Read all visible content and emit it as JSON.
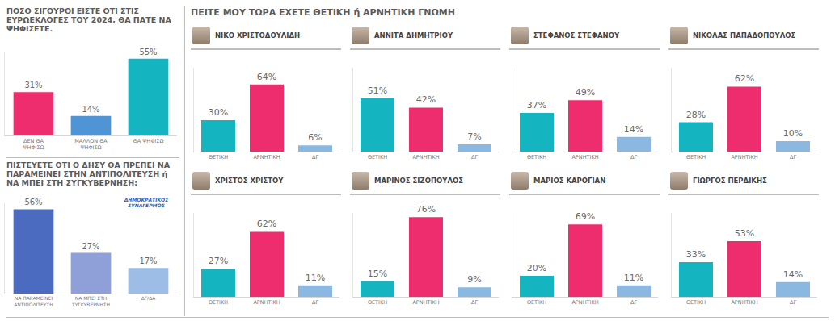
{
  "heading": "ΠΕΙΤΕ ΜΟΥ ΤΩΡΑ ΕΧΕΤΕ ΘΕΤΙΚΗ ή ΑΡΝΗΤΙΚΗ ΓΝΩΜΗ",
  "chart_data": [
    {
      "type": "bar",
      "title": "ΠΟΣΟ ΣΙΓΟΥΡΟΙ ΕΙΣΤΕ ΟΤΙ ΣΤΙΣ ΕΥΡΩΕΚΛΟΓΕΣ ΤΟΥ 2024, ΘΑ ΠΑΤΕ ΝΑ ΨΗΦΙΣΕΤΕ.",
      "categories": [
        "ΔΕΝ ΘΑ ΨΗΦΙΣΩ",
        "ΜΑΛΛΟΝ ΘΑ ΨΗΦΙΣΩ",
        "ΘΑ ΨΗΦΙΣΩ"
      ],
      "values": [
        31,
        14,
        55
      ],
      "value_labels": [
        "31%",
        "14%",
        "55%"
      ],
      "colors": [
        "#ee2d6e",
        "#4f94d4",
        "#14b4c1"
      ],
      "ylim": [
        0,
        60
      ],
      "yticks": [],
      "data_labels": true,
      "tick_labels": "x",
      "grid": false
    },
    {
      "type": "bar",
      "title": "ΠΙΣΤΕΥΕΤΕ ΟΤΙ Ο ΔΗΣΥ ΘΑ ΠΡΕΠΕΙ ΝΑ ΠΑΡΑΜΕΙΝΕΙ ΣΤΗΝ ΑΝΤΙΠΟΛΙΤΕΥΣΗ ή ΝΑ ΜΠΕΙ ΣΤΗ ΣΥΓΚΥΒΕΡΝΗΣΗ;",
      "categories": [
        "ΝΑ ΠΑΡΑΜΕΙΝΕΙ ΑΝΤΙΠΟΛΙΤΕΥΣΗ",
        "ΝΑ ΜΠΕΙ ΣΤΗ ΣΥΓΚΥΒΕΡΝΗΣΗ",
        "ΔΓ/ΔΑ"
      ],
      "values": [
        56,
        27,
        17
      ],
      "value_labels": [
        "56%",
        "27%",
        "17%"
      ],
      "colors": [
        "#4a6bbf",
        "#8f9fd8",
        "#9dbde6"
      ],
      "annotations": [
        {
          "text": "ΔΗΜΟΚΡΑΤΙΚΟΣ ΣΥΝΑΓΕΡΜΟΣ"
        }
      ],
      "ylim": [
        0,
        60
      ],
      "yticks": [],
      "data_labels": true,
      "tick_labels": "x",
      "grid": false
    },
    {
      "type": "bar",
      "title": "ΝΙΚΟ ΧΡΙΣΤΟΔΟΥΛΙΔΗ",
      "categories": [
        "ΘΕΤΙΚΗ",
        "ΑΡΝΗΤΙΚΗ",
        "ΔΓ"
      ],
      "values": [
        30,
        64,
        6
      ],
      "value_labels": [
        "30%",
        "64%",
        "6%"
      ],
      "colors": [
        "#14b4c1",
        "#ee2d6e",
        "#8ab8e0"
      ],
      "ylim": [
        0,
        80
      ],
      "yticks": [],
      "data_labels": true,
      "tick_labels": "x",
      "grid": false
    },
    {
      "type": "bar",
      "title": "ΑΝΝΙΤΑ ΔΗΜΗΤΡΙΟΥ",
      "categories": [
        "ΘΕΤΙΚΗ",
        "ΑΡΝΗΤΙΚΗ",
        "ΔΓ"
      ],
      "values": [
        51,
        42,
        7
      ],
      "value_labels": [
        "51%",
        "42%",
        "7%"
      ],
      "colors": [
        "#14b4c1",
        "#ee2d6e",
        "#8ab8e0"
      ],
      "ylim": [
        0,
        80
      ],
      "yticks": [],
      "data_labels": true,
      "tick_labels": "x",
      "grid": false
    },
    {
      "type": "bar",
      "title": "ΣΤΕΦΑΝΟΣ ΣΤΕΦΑΝΟΥ",
      "categories": [
        "ΘΕΤΙΚΗ",
        "ΑΡΝΗΤΙΚΗ",
        "ΔΓ"
      ],
      "values": [
        37,
        49,
        14
      ],
      "value_labels": [
        "37%",
        "49%",
        "14%"
      ],
      "colors": [
        "#14b4c1",
        "#ee2d6e",
        "#8ab8e0"
      ],
      "ylim": [
        0,
        80
      ],
      "yticks": [],
      "data_labels": true,
      "tick_labels": "x",
      "grid": false
    },
    {
      "type": "bar",
      "title": "ΝΙΚΟΛΑΣ ΠΑΠΑΔΟΠΟΥΛΟΣ",
      "categories": [
        "ΘΕΤΙΚΗ",
        "ΑΡΝΗΤΙΚΗ",
        "ΔΓ"
      ],
      "values": [
        28,
        62,
        10
      ],
      "value_labels": [
        "28%",
        "62%",
        "10%"
      ],
      "colors": [
        "#14b4c1",
        "#ee2d6e",
        "#8ab8e0"
      ],
      "ylim": [
        0,
        80
      ],
      "yticks": [],
      "data_labels": true,
      "tick_labels": "x",
      "grid": false
    },
    {
      "type": "bar",
      "title": "ΧΡΙΣΤΟΣ ΧΡΙΣΤΟΥ",
      "categories": [
        "ΘΕΤΙΚΗ",
        "ΑΡΝΗΤΙΚΗ",
        "ΔΓ"
      ],
      "values": [
        27,
        62,
        11
      ],
      "value_labels": [
        "27%",
        "62%",
        "11%"
      ],
      "colors": [
        "#14b4c1",
        "#ee2d6e",
        "#8ab8e0"
      ],
      "ylim": [
        0,
        80
      ],
      "yticks": [],
      "data_labels": true,
      "tick_labels": "x",
      "grid": false
    },
    {
      "type": "bar",
      "title": "ΜΑΡΙΝΟΣ ΣΙΖΟΠΟΥΛΟΣ",
      "categories": [
        "ΘΕΤΙΚΗ",
        "ΑΡΝΗΤΙΚΗ",
        "ΔΓ"
      ],
      "values": [
        15,
        76,
        9
      ],
      "value_labels": [
        "15%",
        "76%",
        "9%"
      ],
      "colors": [
        "#14b4c1",
        "#ee2d6e",
        "#8ab8e0"
      ],
      "ylim": [
        0,
        80
      ],
      "yticks": [],
      "data_labels": true,
      "tick_labels": "x",
      "grid": false
    },
    {
      "type": "bar",
      "title": "ΜΑΡΙΟΣ ΚΑΡΟΓΙΑΝ",
      "categories": [
        "ΘΕΤΙΚΗ",
        "ΑΡΝΗΤΙΚΗ",
        "ΔΓ"
      ],
      "values": [
        20,
        69,
        11
      ],
      "value_labels": [
        "20%",
        "69%",
        "11%"
      ],
      "colors": [
        "#14b4c1",
        "#ee2d6e",
        "#8ab8e0"
      ],
      "ylim": [
        0,
        80
      ],
      "yticks": [],
      "data_labels": true,
      "tick_labels": "x",
      "grid": false
    },
    {
      "type": "bar",
      "title": "ΓΙΩΡΓΟΣ ΠΕΡΔΙΚΗΣ",
      "categories": [
        "ΘΕΤΙΚΗ",
        "ΑΡΝΗΤΙΚΗ",
        "ΔΓ"
      ],
      "values": [
        33,
        53,
        14
      ],
      "value_labels": [
        "33%",
        "53%",
        "14%"
      ],
      "colors": [
        "#14b4c1",
        "#ee2d6e",
        "#8ab8e0"
      ],
      "ylim": [
        0,
        80
      ],
      "yticks": [],
      "data_labels": true,
      "tick_labels": "x",
      "grid": false
    }
  ]
}
